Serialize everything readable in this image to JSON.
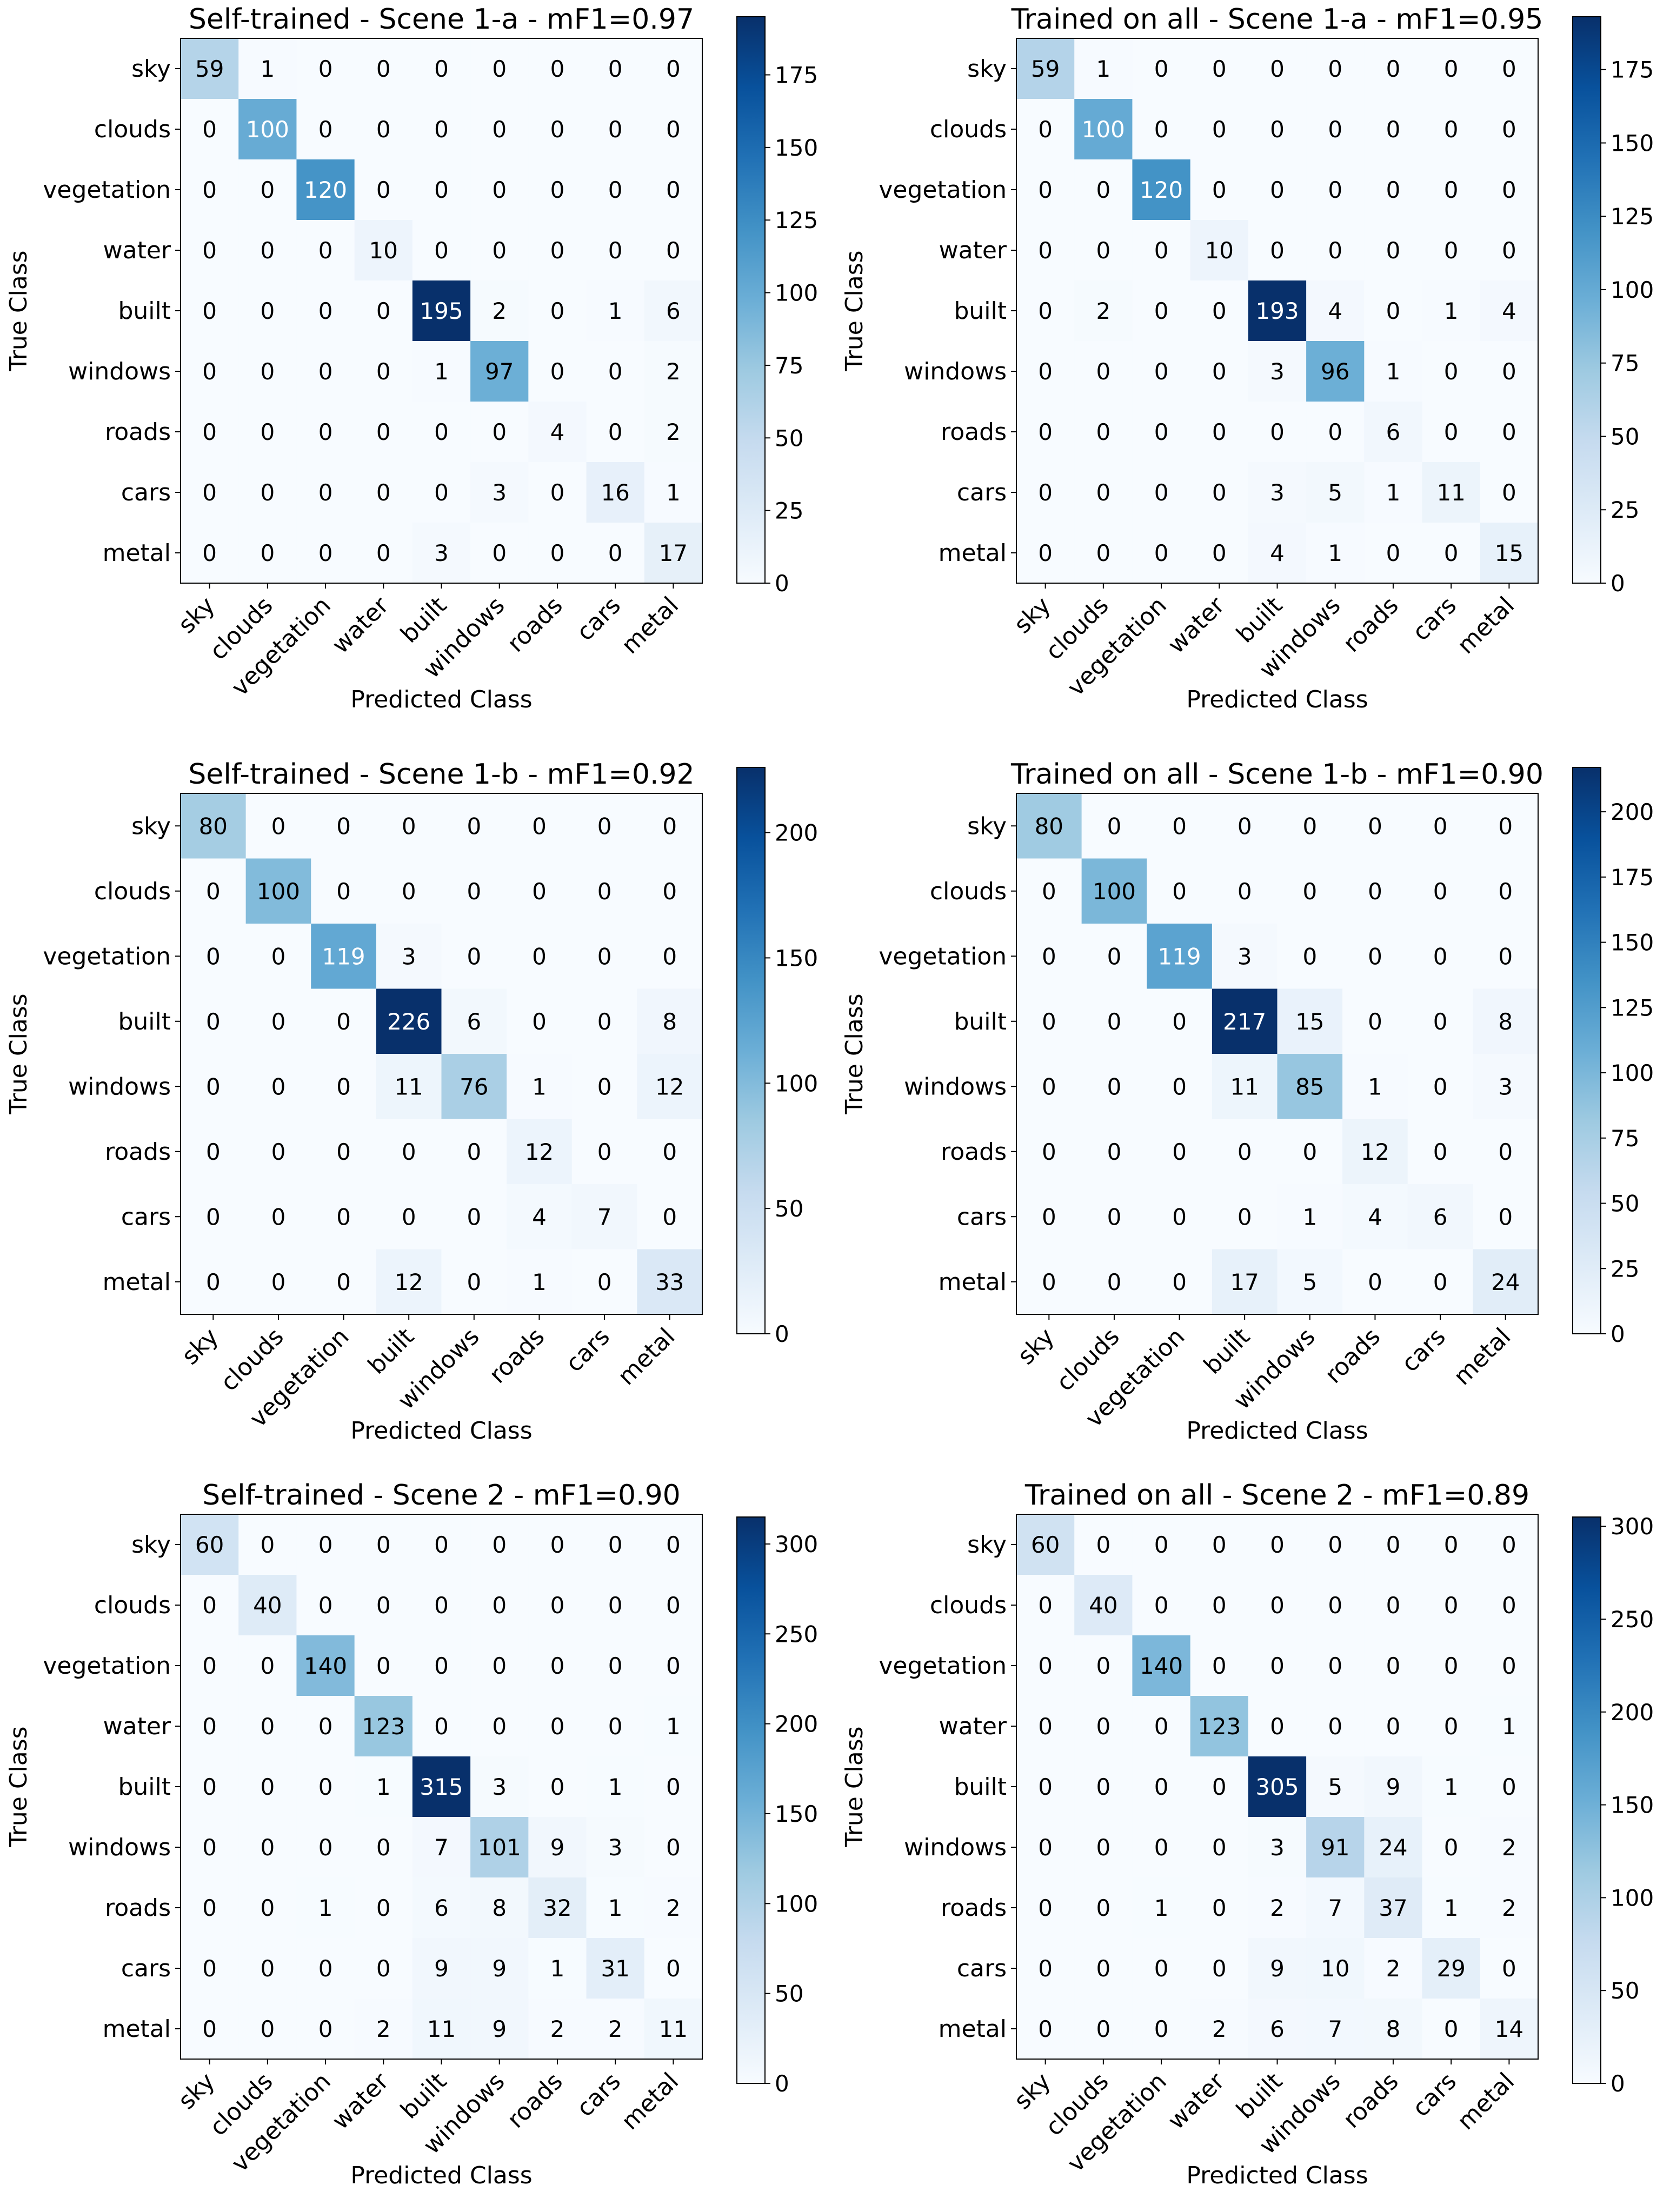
{
  "colormap": {
    "name": "Blues",
    "stops": [
      "#f7fbff",
      "#deebf7",
      "#c6dbef",
      "#9ecae1",
      "#6baed6",
      "#4292c6",
      "#2171b5",
      "#08519c",
      "#08306b"
    ]
  },
  "chart_data": [
    {
      "type": "heatmap",
      "title": "Self-trained - Scene 1-a - mF1=0.97",
      "xlabel": "Predicted Class",
      "ylabel": "True Class",
      "categories": [
        "sky",
        "clouds",
        "vegetation",
        "water",
        "built",
        "windows",
        "roads",
        "cars",
        "metal"
      ],
      "matrix": [
        [
          59,
          1,
          0,
          0,
          0,
          0,
          0,
          0,
          0
        ],
        [
          0,
          100,
          0,
          0,
          0,
          0,
          0,
          0,
          0
        ],
        [
          0,
          0,
          120,
          0,
          0,
          0,
          0,
          0,
          0
        ],
        [
          0,
          0,
          0,
          10,
          0,
          0,
          0,
          0,
          0
        ],
        [
          0,
          0,
          0,
          0,
          195,
          2,
          0,
          1,
          6
        ],
        [
          0,
          0,
          0,
          0,
          1,
          97,
          0,
          0,
          2
        ],
        [
          0,
          0,
          0,
          0,
          0,
          0,
          4,
          0,
          2
        ],
        [
          0,
          0,
          0,
          0,
          0,
          3,
          0,
          16,
          1
        ],
        [
          0,
          0,
          0,
          0,
          3,
          0,
          0,
          0,
          17
        ]
      ],
      "colorbar": {
        "min": 0,
        "max": 195,
        "ticks": [
          0,
          25,
          50,
          75,
          100,
          125,
          150,
          175
        ]
      }
    },
    {
      "type": "heatmap",
      "title": "Trained on all - Scene 1-a - mF1=0.95",
      "xlabel": "Predicted Class",
      "ylabel": "True Class",
      "categories": [
        "sky",
        "clouds",
        "vegetation",
        "water",
        "built",
        "windows",
        "roads",
        "cars",
        "metal"
      ],
      "matrix": [
        [
          59,
          1,
          0,
          0,
          0,
          0,
          0,
          0,
          0
        ],
        [
          0,
          100,
          0,
          0,
          0,
          0,
          0,
          0,
          0
        ],
        [
          0,
          0,
          120,
          0,
          0,
          0,
          0,
          0,
          0
        ],
        [
          0,
          0,
          0,
          10,
          0,
          0,
          0,
          0,
          0
        ],
        [
          0,
          2,
          0,
          0,
          193,
          4,
          0,
          1,
          4
        ],
        [
          0,
          0,
          0,
          0,
          3,
          96,
          1,
          0,
          0
        ],
        [
          0,
          0,
          0,
          0,
          0,
          0,
          6,
          0,
          0
        ],
        [
          0,
          0,
          0,
          0,
          3,
          5,
          1,
          11,
          0
        ],
        [
          0,
          0,
          0,
          0,
          4,
          1,
          0,
          0,
          15
        ]
      ],
      "colorbar": {
        "min": 0,
        "max": 193,
        "ticks": [
          0,
          25,
          50,
          75,
          100,
          125,
          150,
          175
        ]
      }
    },
    {
      "type": "heatmap",
      "title": "Self-trained - Scene 1-b - mF1=0.92",
      "xlabel": "Predicted Class",
      "ylabel": "True Class",
      "categories": [
        "sky",
        "clouds",
        "vegetation",
        "built",
        "windows",
        "roads",
        "cars",
        "metal"
      ],
      "matrix": [
        [
          80,
          0,
          0,
          0,
          0,
          0,
          0,
          0
        ],
        [
          0,
          100,
          0,
          0,
          0,
          0,
          0,
          0
        ],
        [
          0,
          0,
          119,
          3,
          0,
          0,
          0,
          0
        ],
        [
          0,
          0,
          0,
          226,
          6,
          0,
          0,
          8
        ],
        [
          0,
          0,
          0,
          11,
          76,
          1,
          0,
          12
        ],
        [
          0,
          0,
          0,
          0,
          0,
          12,
          0,
          0
        ],
        [
          0,
          0,
          0,
          0,
          0,
          4,
          7,
          0
        ],
        [
          0,
          0,
          0,
          12,
          0,
          1,
          0,
          33
        ]
      ],
      "colorbar": {
        "min": 0,
        "max": 226,
        "ticks": [
          0,
          50,
          100,
          150,
          200
        ]
      }
    },
    {
      "type": "heatmap",
      "title": "Trained on all - Scene 1-b - mF1=0.90",
      "xlabel": "Predicted Class",
      "ylabel": "True Class",
      "categories": [
        "sky",
        "clouds",
        "vegetation",
        "built",
        "windows",
        "roads",
        "cars",
        "metal"
      ],
      "matrix": [
        [
          80,
          0,
          0,
          0,
          0,
          0,
          0,
          0
        ],
        [
          0,
          100,
          0,
          0,
          0,
          0,
          0,
          0
        ],
        [
          0,
          0,
          119,
          3,
          0,
          0,
          0,
          0
        ],
        [
          0,
          0,
          0,
          217,
          15,
          0,
          0,
          8
        ],
        [
          0,
          0,
          0,
          11,
          85,
          1,
          0,
          3
        ],
        [
          0,
          0,
          0,
          0,
          0,
          12,
          0,
          0
        ],
        [
          0,
          0,
          0,
          0,
          1,
          4,
          6,
          0
        ],
        [
          0,
          0,
          0,
          17,
          5,
          0,
          0,
          24
        ]
      ],
      "colorbar": {
        "min": 0,
        "max": 217,
        "ticks": [
          0,
          25,
          50,
          75,
          100,
          125,
          150,
          175,
          200
        ]
      }
    },
    {
      "type": "heatmap",
      "title": "Self-trained - Scene 2 - mF1=0.90",
      "xlabel": "Predicted Class",
      "ylabel": "True Class",
      "categories": [
        "sky",
        "clouds",
        "vegetation",
        "water",
        "built",
        "windows",
        "roads",
        "cars",
        "metal"
      ],
      "matrix": [
        [
          60,
          0,
          0,
          0,
          0,
          0,
          0,
          0,
          0
        ],
        [
          0,
          40,
          0,
          0,
          0,
          0,
          0,
          0,
          0
        ],
        [
          0,
          0,
          140,
          0,
          0,
          0,
          0,
          0,
          0
        ],
        [
          0,
          0,
          0,
          123,
          0,
          0,
          0,
          0,
          1
        ],
        [
          0,
          0,
          0,
          1,
          315,
          3,
          0,
          1,
          0
        ],
        [
          0,
          0,
          0,
          0,
          7,
          101,
          9,
          3,
          0
        ],
        [
          0,
          0,
          1,
          0,
          6,
          8,
          32,
          1,
          2
        ],
        [
          0,
          0,
          0,
          0,
          9,
          9,
          1,
          31,
          0
        ],
        [
          0,
          0,
          0,
          2,
          11,
          9,
          2,
          2,
          11
        ]
      ],
      "colorbar": {
        "min": 0,
        "max": 315,
        "ticks": [
          0,
          50,
          100,
          150,
          200,
          250,
          300
        ]
      }
    },
    {
      "type": "heatmap",
      "title": "Trained on all - Scene 2 - mF1=0.89",
      "xlabel": "Predicted Class",
      "ylabel": "True Class",
      "categories": [
        "sky",
        "clouds",
        "vegetation",
        "water",
        "built",
        "windows",
        "roads",
        "cars",
        "metal"
      ],
      "matrix": [
        [
          60,
          0,
          0,
          0,
          0,
          0,
          0,
          0,
          0
        ],
        [
          0,
          40,
          0,
          0,
          0,
          0,
          0,
          0,
          0
        ],
        [
          0,
          0,
          140,
          0,
          0,
          0,
          0,
          0,
          0
        ],
        [
          0,
          0,
          0,
          123,
          0,
          0,
          0,
          0,
          1
        ],
        [
          0,
          0,
          0,
          0,
          305,
          5,
          9,
          1,
          0
        ],
        [
          0,
          0,
          0,
          0,
          3,
          91,
          24,
          0,
          2
        ],
        [
          0,
          0,
          1,
          0,
          2,
          7,
          37,
          1,
          2
        ],
        [
          0,
          0,
          0,
          0,
          9,
          10,
          2,
          29,
          0
        ],
        [
          0,
          0,
          0,
          2,
          6,
          7,
          8,
          0,
          14
        ]
      ],
      "colorbar": {
        "min": 0,
        "max": 305,
        "ticks": [
          0,
          50,
          100,
          150,
          200,
          250,
          300
        ]
      }
    }
  ]
}
